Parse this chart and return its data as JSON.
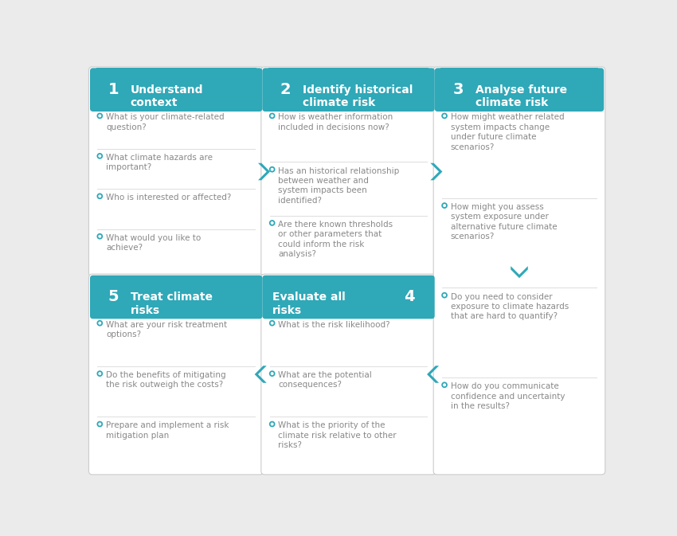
{
  "teal": "#2fa8b8",
  "text_gray": "#888888",
  "bg_color": "#ebebeb",
  "card_bg": "#ffffff",
  "sep_line": "#dddddd",
  "fig_w": 8.5,
  "fig_h": 6.73,
  "dpi": 100,
  "steps": [
    {
      "number": "1",
      "title": "Understand\ncontext",
      "arrow_dir": "right",
      "col": 0,
      "row": 0,
      "items": [
        "What is your climate-related\nquestion?",
        "What climate hazards are\nimportant?",
        "Who is interested or affected?",
        "What would you like to\nachieve?"
      ]
    },
    {
      "number": "2",
      "title": "Identify historical\nclimate risk",
      "arrow_dir": "right",
      "col": 1,
      "row": 0,
      "items": [
        "How is weather information\nincluded in decisions now?",
        "Has an historical relationship\nbetween weather and\nsystem impacts been\nidentified?",
        "Are there known thresholds\nor other parameters that\ncould inform the risk\nanalysis?"
      ]
    },
    {
      "number": "5",
      "title": "Treat climate\nrisks",
      "arrow_dir": "none",
      "num_right": false,
      "col": 0,
      "row": 1,
      "items": [
        "What are your risk treatment\noptions?",
        "Do the benefits of mitigating\nthe risk outweigh the costs?",
        "Prepare and implement a risk\nmitigation plan"
      ]
    },
    {
      "number": "4",
      "title": "Evaluate all\nrisks",
      "arrow_dir": "left",
      "num_right": true,
      "col": 1,
      "row": 1,
      "items": [
        "What is the risk likelihood?",
        "What are the potential\nconsequences?",
        "What is the priority of the\nclimate risk relative to other\nrisks?"
      ]
    }
  ],
  "step3": {
    "number": "3",
    "title": "Analyse future\nclimate risk",
    "items": [
      "How might weather related\nsystem impacts change\nunder future climate\nscenarios?",
      "How might you assess\nsystem exposure under\nalternative future climate\nscenarios?",
      "Do you need to consider\nexposure to climate hazards\nthat are hard to quantify?",
      "How do you communicate\nconfidence and uncertainty\nin the results?"
    ]
  }
}
